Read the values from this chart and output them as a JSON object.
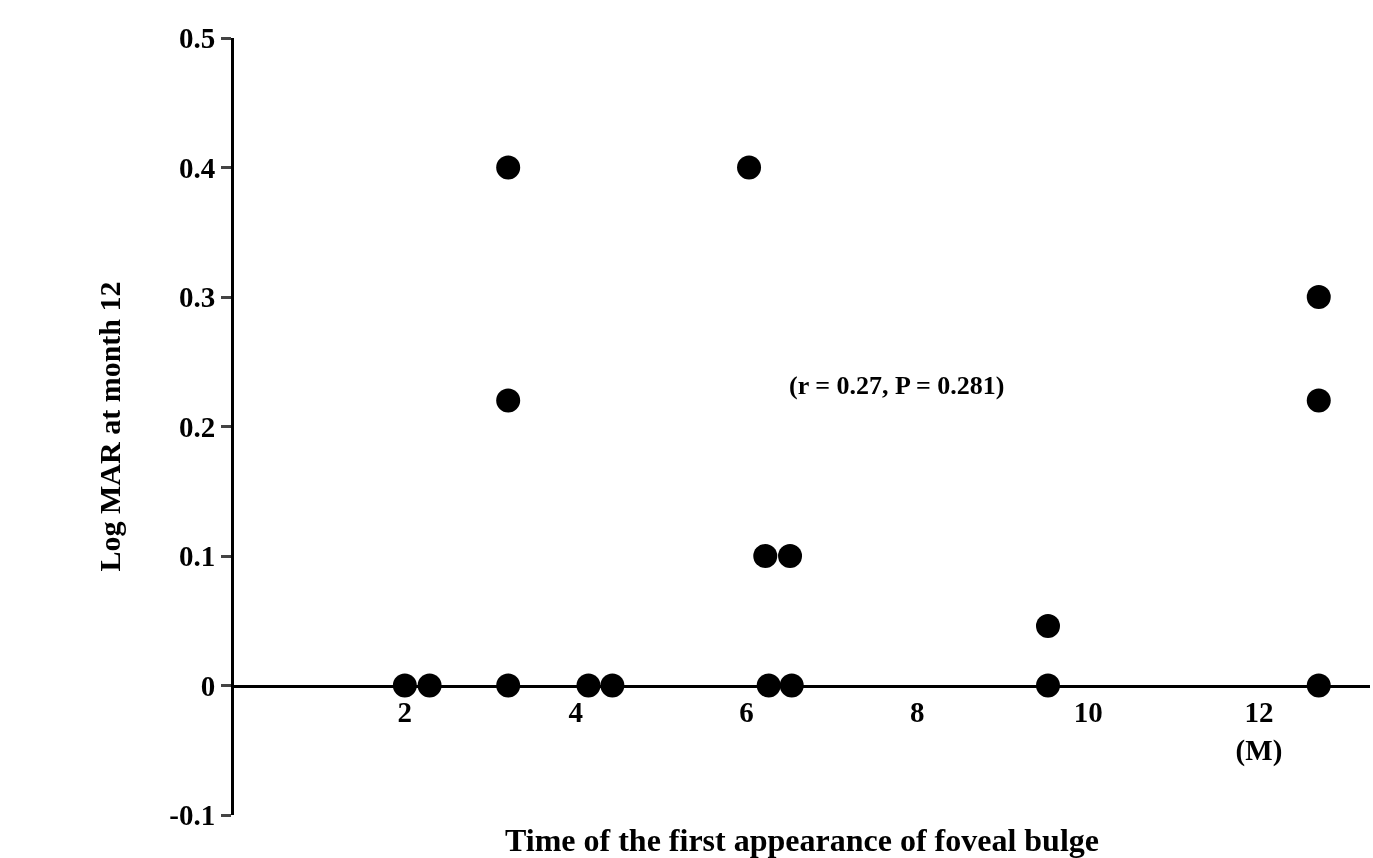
{
  "chart_data": {
    "type": "scatter",
    "xlabel": "Time of the first appearance of foveal bulge",
    "ylabel": "Log MAR at month 12",
    "x": [
      2,
      2.29,
      3.21,
      4.15,
      4.43,
      6.26,
      6.53,
      6.22,
      6.51,
      6.03,
      3.21,
      3.21,
      9.53,
      9.53,
      12.7,
      12.7,
      12.7
    ],
    "values": [
      0,
      0,
      0,
      0,
      0,
      0,
      0,
      0.1,
      0.1,
      0.4,
      0.4,
      0.22,
      0,
      0.046,
      0,
      0.22,
      0.3
    ],
    "color": "#000000",
    "marker": "circle",
    "xlim": [
      0,
      13.3
    ],
    "xticks": [
      2,
      4,
      6,
      8,
      10,
      {
        "value": 12,
        "label": "12\n(M)"
      }
    ],
    "ylim": [
      -0.1,
      0.5
    ],
    "yticks": [
      -0.1,
      0,
      0.1,
      0.2,
      0.3,
      0.4,
      0.5
    ],
    "annotations": [
      "(r = 0.27, P = 0.281)"
    ]
  }
}
